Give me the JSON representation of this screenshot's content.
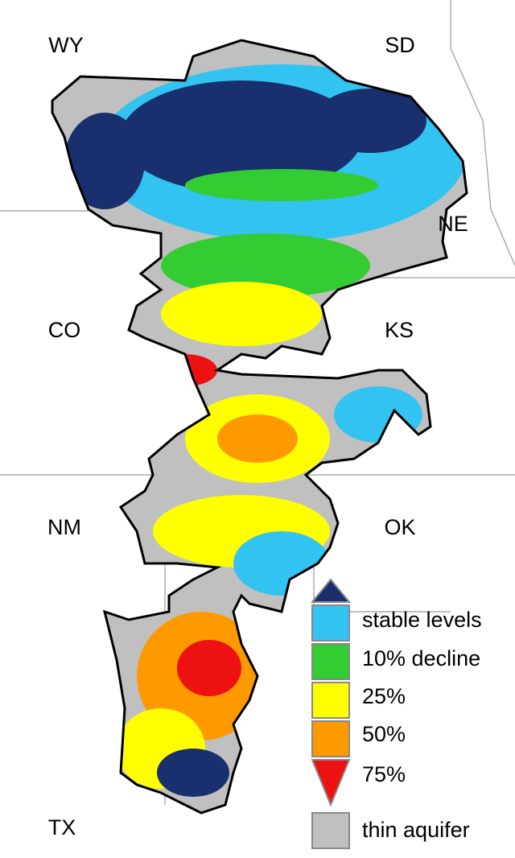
{
  "states": [
    {
      "label": "WY"
    },
    {
      "label": "SD"
    },
    {
      "label": "NE"
    },
    {
      "label": "CO"
    },
    {
      "label": "KS"
    },
    {
      "label": "NM"
    },
    {
      "label": "OK"
    },
    {
      "label": "TX"
    }
  ],
  "legend": {
    "items": [
      {
        "label": "stable levels",
        "color": "#1a2f6e"
      },
      {
        "label": "10% decline",
        "color": "#33c3f0"
      },
      {
        "label": "25%",
        "color": "#33cc33"
      },
      {
        "label": "50%",
        "color": "#ffff00"
      },
      {
        "label": "75%",
        "color": "#ff9900"
      },
      {
        "label": "thin aquifer",
        "color": "#c0c0c0"
      }
    ],
    "low_color": "#ee1111"
  }
}
